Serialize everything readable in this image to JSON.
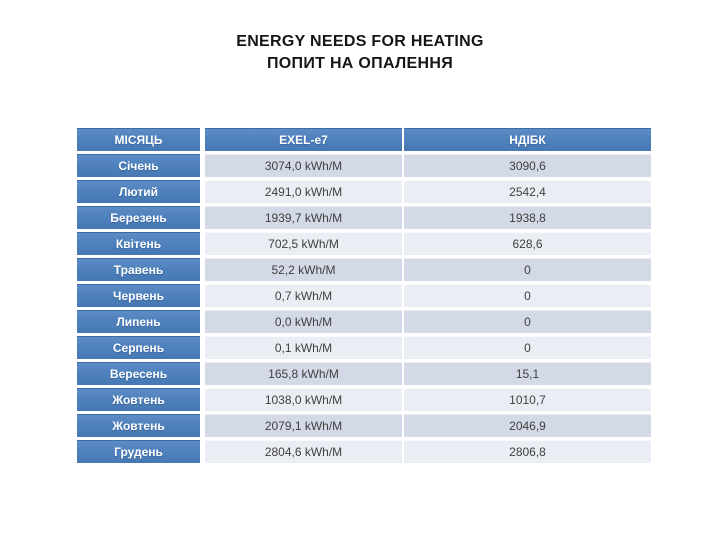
{
  "slide": {
    "title_line1": "ENERGY NEEDS FOR HEATING",
    "title_line2": "ПОПИТ НА ОПАЛЕННЯ"
  },
  "colors": {
    "accent_blue": "#4F81BD",
    "band_dark": "#D3D9E6",
    "band_light": "#EAEDF4",
    "body_text": "#404040",
    "header_text": "#FFFFFF",
    "title_text": "#161616",
    "background": "#FFFFFF"
  },
  "table": {
    "headers": [
      "МІСЯЦЬ",
      "EXEL-e7",
      "НДІБК"
    ],
    "rows": [
      {
        "month": "Січень",
        "exel": "3074,0 kWh/M",
        "ndibk": "3090,6"
      },
      {
        "month": "Лютий",
        "exel": "2491,0 kWh/M",
        "ndibk": "2542,4"
      },
      {
        "month": "Березень",
        "exel": "1939,7 kWh/M",
        "ndibk": "1938,8"
      },
      {
        "month": "Квітень",
        "exel": "702,5 kWh/M",
        "ndibk": "628,6"
      },
      {
        "month": "Травень",
        "exel": "52,2 kWh/M",
        "ndibk": "0"
      },
      {
        "month": "Червень",
        "exel": "0,7 kWh/M",
        "ndibk": "0"
      },
      {
        "month": "Липень",
        "exel": "0,0 kWh/M",
        "ndibk": "0"
      },
      {
        "month": "Серпень",
        "exel": "0,1 kWh/M",
        "ndibk": "0"
      },
      {
        "month": "Вересень",
        "exel": "165,8 kWh/M",
        "ndibk": "15,1"
      },
      {
        "month": "Жовтень",
        "exel": "1038,0 kWh/M",
        "ndibk": "1010,7"
      },
      {
        "month": "Жовтень",
        "exel": "2079,1 kWh/M",
        "ndibk": "2046,9"
      },
      {
        "month": "Грудень",
        "exel": "2804,6 kWh/M",
        "ndibk": "2806,8"
      }
    ]
  }
}
